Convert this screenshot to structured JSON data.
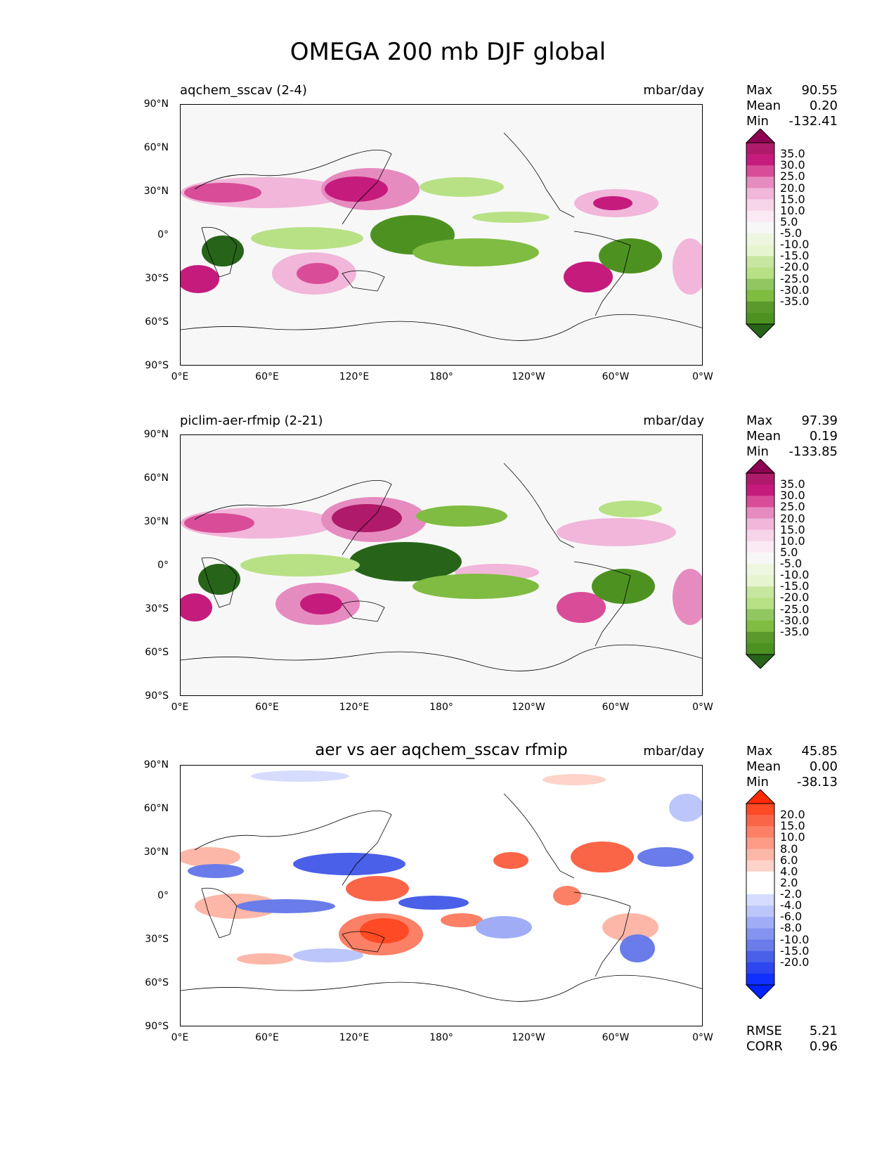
{
  "figure": {
    "title": "OMEGA 200 mb DJF global"
  },
  "axes": {
    "y_ticks": [
      "90°N",
      "60°N",
      "30°N",
      "0°",
      "30°S",
      "60°S",
      "90°S"
    ],
    "x_ticks": [
      "0°E",
      "60°E",
      "120°E",
      "180°",
      "120°W",
      "60°W",
      "0°W"
    ]
  },
  "panels": [
    {
      "title": "aqchem_sscav (2-4)",
      "units": "mbar/day",
      "stats": {
        "max_label": "Max",
        "max": "90.55",
        "mean_label": "Mean",
        "mean": "0.20",
        "min_label": "Min",
        "min": "-132.41"
      },
      "colorbar_labels": [
        "35.0",
        "30.0",
        "25.0",
        "20.0",
        "15.0",
        "10.0",
        "5.0",
        "-5.0",
        "-10.0",
        "-15.0",
        "-20.0",
        "-25.0",
        "-30.0",
        "-35.0"
      ],
      "colorbar_colors": [
        "#8e0152",
        "#b01a6a",
        "#c51b7d",
        "#d94d98",
        "#e68bbf",
        "#f1b6da",
        "#f7d5e9",
        "#fbeaf3",
        "#f7f7f7",
        "#eef6e1",
        "#e6f5d0",
        "#c7e6a0",
        "#b8e186",
        "#91c660",
        "#7fbc41",
        "#5a9a2c",
        "#4d9221",
        "#276419"
      ]
    },
    {
      "title": "piclim-aer-rfmip (2-21)",
      "units": "mbar/day",
      "stats": {
        "max_label": "Max",
        "max": "97.39",
        "mean_label": "Mean",
        "mean": "0.19",
        "min_label": "Min",
        "min": "-133.85"
      },
      "colorbar_labels": [
        "35.0",
        "30.0",
        "25.0",
        "20.0",
        "15.0",
        "10.0",
        "5.0",
        "-5.0",
        "-10.0",
        "-15.0",
        "-20.0",
        "-25.0",
        "-30.0",
        "-35.0"
      ],
      "colorbar_colors": [
        "#8e0152",
        "#b01a6a",
        "#c51b7d",
        "#d94d98",
        "#e68bbf",
        "#f1b6da",
        "#f7d5e9",
        "#fbeaf3",
        "#f7f7f7",
        "#eef6e1",
        "#e6f5d0",
        "#c7e6a0",
        "#b8e186",
        "#91c660",
        "#7fbc41",
        "#5a9a2c",
        "#4d9221",
        "#276419"
      ]
    },
    {
      "title": "aer vs aer aqchem_sscav rfmip",
      "units": "mbar/day",
      "stats": {
        "max_label": "Max",
        "max": "45.85",
        "mean_label": "Mean",
        "mean": "0.00",
        "min_label": "Min",
        "min": "-38.13"
      },
      "colorbar_labels": [
        "20.0",
        "15.0",
        "10.0",
        "8.0",
        "6.0",
        "4.0",
        "2.0",
        "-2.0",
        "-4.0",
        "-6.0",
        "-8.0",
        "-10.0",
        "-15.0",
        "-20.0"
      ],
      "colorbar_colors": [
        "#ff2a00",
        "#ff4a25",
        "#fa6548",
        "#fb8066",
        "#fc9b86",
        "#fdb7a8",
        "#fed3c9",
        "#ffffff",
        "#ffffff",
        "#d6dcff",
        "#bcc6fb",
        "#a0adf6",
        "#8493f0",
        "#6a7ce9",
        "#4a60e8",
        "#2d46ee",
        "#1030ff",
        "#0022ff"
      ],
      "error_stats": {
        "rmse_label": "RMSE",
        "rmse": "5.21",
        "corr_label": "CORR",
        "corr": "0.96"
      }
    }
  ],
  "chart_data": {
    "type": "heatmap",
    "title": "OMEGA 200 mb DJF global",
    "variable": "OMEGA",
    "level": "200 mb",
    "season": "DJF",
    "region": "global",
    "units": "mbar/day",
    "xlabel": "",
    "ylabel": "",
    "xlim": [
      0,
      360
    ],
    "ylim": [
      -90,
      90
    ],
    "panels": [
      {
        "name": "aqchem_sscav (2-4)",
        "max": 90.55,
        "mean": 0.2,
        "min": -132.41,
        "levels": [
          -35,
          -30,
          -25,
          -20,
          -15,
          -10,
          -5,
          5,
          10,
          15,
          20,
          25,
          30,
          35
        ]
      },
      {
        "name": "piclim-aer-rfmip (2-21)",
        "max": 97.39,
        "mean": 0.19,
        "min": -133.85,
        "levels": [
          -35,
          -30,
          -25,
          -20,
          -15,
          -10,
          -5,
          5,
          10,
          15,
          20,
          25,
          30,
          35
        ]
      },
      {
        "name": "aer vs aer aqchem_sscav rfmip",
        "max": 45.85,
        "mean": 0.0,
        "min": -38.13,
        "levels": [
          -20,
          -15,
          -10,
          -8,
          -6,
          -4,
          -2,
          2,
          4,
          6,
          8,
          10,
          15,
          20
        ],
        "rmse": 5.21,
        "corr": 0.96
      }
    ]
  }
}
